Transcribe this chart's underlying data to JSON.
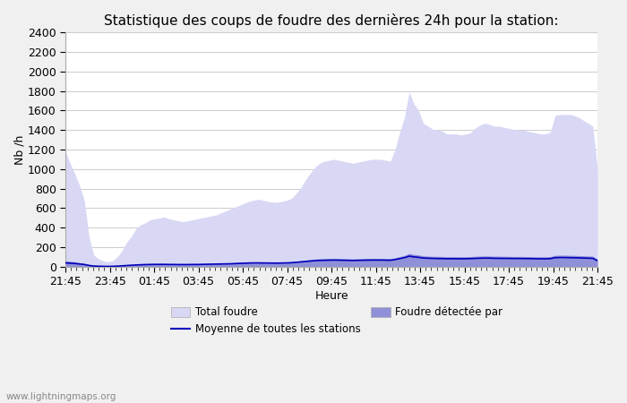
{
  "title": "Statistique des coups de foudre des dernières 24h pour la station:",
  "xlabel": "Heure",
  "ylabel": "Nb /h",
  "watermark": "www.lightningmaps.org",
  "legend": [
    {
      "label": "Total foudre",
      "color": "#d8d8f5",
      "type": "fill"
    },
    {
      "label": "Foudre détectée par",
      "color": "#9090d8",
      "type": "fill"
    },
    {
      "label": "Moyenne de toutes les stations",
      "color": "#0000cc",
      "type": "line"
    }
  ],
  "x_ticks": [
    "21:45",
    "23:45",
    "01:45",
    "03:45",
    "05:45",
    "07:45",
    "09:45",
    "11:45",
    "13:45",
    "15:45",
    "17:45",
    "19:45",
    "21:45"
  ],
  "ylim": [
    0,
    2400
  ],
  "yticks": [
    0,
    200,
    400,
    600,
    800,
    1000,
    1200,
    1400,
    1600,
    1800,
    2000,
    2200,
    2400
  ],
  "total_foudre": [
    1180,
    1060,
    950,
    830,
    680,
    310,
    120,
    80,
    60,
    50,
    60,
    100,
    160,
    250,
    310,
    390,
    430,
    450,
    480,
    490,
    500,
    510,
    490,
    480,
    470,
    460,
    470,
    480,
    490,
    500,
    510,
    520,
    530,
    550,
    570,
    590,
    610,
    630,
    650,
    670,
    680,
    690,
    680,
    670,
    660,
    660,
    670,
    680,
    700,
    750,
    810,
    890,
    960,
    1020,
    1060,
    1080,
    1090,
    1100,
    1090,
    1080,
    1070,
    1060,
    1070,
    1080,
    1090,
    1100,
    1100,
    1100,
    1090,
    1080,
    1200,
    1380,
    1530,
    1790,
    1670,
    1600,
    1470,
    1440,
    1410,
    1400,
    1390,
    1360,
    1360,
    1360,
    1350,
    1360,
    1370,
    1420,
    1450,
    1470,
    1460,
    1440,
    1440,
    1430,
    1420,
    1410,
    1400,
    1400,
    1390,
    1380,
    1370,
    1360,
    1360,
    1380,
    1550,
    1560,
    1560,
    1560,
    1550,
    1530,
    1500,
    1470,
    1440,
    1000
  ],
  "foudre_detectee": [
    60,
    55,
    50,
    40,
    30,
    15,
    8,
    5,
    4,
    3,
    4,
    6,
    10,
    15,
    18,
    22,
    25,
    27,
    29,
    30,
    30,
    30,
    29,
    28,
    27,
    26,
    27,
    28,
    29,
    30,
    31,
    32,
    33,
    34,
    36,
    38,
    40,
    42,
    44,
    46,
    47,
    48,
    47,
    46,
    45,
    45,
    46,
    47,
    50,
    55,
    60,
    66,
    72,
    77,
    80,
    82,
    83,
    84,
    83,
    82,
    80,
    79,
    80,
    82,
    83,
    84,
    84,
    84,
    83,
    82,
    90,
    103,
    115,
    135,
    126,
    120,
    110,
    108,
    106,
    105,
    104,
    102,
    102,
    102,
    101,
    102,
    103,
    106,
    108,
    110,
    109,
    107,
    107,
    106,
    105,
    104,
    104,
    104,
    103,
    102,
    101,
    101,
    101,
    103,
    116,
    117,
    117,
    116,
    115,
    113,
    111,
    109,
    107,
    75
  ],
  "moyenne": [
    38,
    35,
    32,
    27,
    22,
    12,
    6,
    4,
    3,
    2,
    3,
    5,
    8,
    11,
    14,
    17,
    19,
    21,
    22,
    23,
    23,
    23,
    22,
    22,
    21,
    21,
    21,
    22,
    22,
    23,
    24,
    25,
    26,
    27,
    28,
    29,
    31,
    33,
    35,
    37,
    38,
    38,
    37,
    37,
    36,
    36,
    37,
    38,
    40,
    44,
    48,
    53,
    57,
    61,
    64,
    65,
    66,
    67,
    66,
    65,
    64,
    63,
    64,
    65,
    66,
    67,
    67,
    67,
    66,
    65,
    72,
    82,
    92,
    107,
    100,
    95,
    88,
    86,
    84,
    83,
    82,
    81,
    81,
    81,
    80,
    81,
    82,
    84,
    86,
    87,
    87,
    85,
    85,
    84,
    84,
    83,
    83,
    83,
    82,
    82,
    81,
    80,
    80,
    82,
    92,
    93,
    93,
    92,
    91,
    90,
    88,
    86,
    85,
    60
  ],
  "bg_color": "#f0f0f0",
  "plot_bg_color": "#ffffff",
  "fill_color_total": "#d8d8f5",
  "fill_color_detectee": "#9090d8",
  "line_color": "#0000bb",
  "title_fontsize": 11,
  "tick_fontsize": 9,
  "label_fontsize": 9
}
